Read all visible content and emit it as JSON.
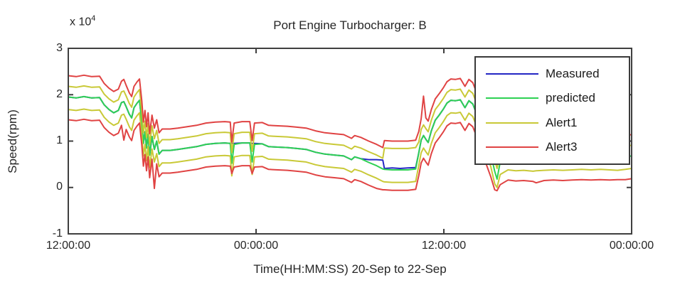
{
  "chart_data": {
    "type": "line",
    "title": "Port Engine Turbocharger: B",
    "xlabel": "Time(HH:MM:SS) 20-Sep to 22-Sep",
    "ylabel": "Speed(rpm)",
    "y_multiplier_base": "x 10",
    "y_multiplier_exp": "4",
    "ylim": [
      -1,
      3
    ],
    "yticks": [
      3,
      2,
      1,
      0,
      -1
    ],
    "ytick_labels": [
      "3",
      "2",
      "1",
      "0",
      "-1"
    ],
    "xlim_hours": [
      0,
      36
    ],
    "xticks": [
      {
        "t": 0,
        "label": "12:00:00"
      },
      {
        "t": 12,
        "label": "00:00:00"
      },
      {
        "t": 24,
        "label": "12:00:00"
      },
      {
        "t": 36,
        "label": "00:00:00"
      }
    ],
    "grid": false,
    "axis_color": "#3f3f3f",
    "legend_position": "top-right",
    "x_hours": [
      0,
      0.5,
      1,
      1.5,
      2,
      2.3,
      2.6,
      2.9,
      3.2,
      3.4,
      3.55,
      3.7,
      3.9,
      4.05,
      4.2,
      4.4,
      4.55,
      4.7,
      4.8,
      4.9,
      5.0,
      5.1,
      5.2,
      5.35,
      5.5,
      5.65,
      5.8,
      6.0,
      6.5,
      7.0,
      7.6,
      8.2,
      8.8,
      9.4,
      10.0,
      10.35,
      10.45,
      10.6,
      11.1,
      11.6,
      11.75,
      11.9,
      12.4,
      12.8,
      13.4,
      14.0,
      14.6,
      15.2,
      15.8,
      16.4,
      17.0,
      17.6,
      18.1,
      18.3,
      18.7,
      19.2,
      19.7,
      20.1,
      20.2,
      20.7,
      21.2,
      21.7,
      22.2,
      22.4,
      22.55,
      22.7,
      22.85,
      23.0,
      23.2,
      23.45,
      23.7,
      23.95,
      24.2,
      24.45,
      24.75,
      25.05,
      25.35,
      25.6,
      25.85,
      26.1,
      26.4,
      26.7,
      27.0,
      27.25,
      27.4,
      27.6,
      28.1,
      28.6,
      29.1,
      29.7,
      29.9,
      30.4,
      31.0,
      31.6,
      32.2,
      32.8,
      33.4,
      34.0,
      34.6,
      35.1,
      35.6,
      36.0
    ],
    "series": [
      {
        "name": "Measured",
        "color": "#2426c4",
        "values": [
          1.95,
          1.93,
          1.96,
          1.93,
          1.94,
          1.78,
          1.68,
          1.61,
          1.66,
          1.83,
          1.85,
          1.74,
          1.58,
          1.5,
          1.72,
          1.82,
          1.88,
          1.4,
          0.95,
          1.2,
          0.85,
          1.15,
          0.7,
          1.1,
          0.82,
          1.0,
          0.72,
          0.8,
          0.8,
          0.82,
          0.85,
          0.88,
          0.93,
          0.95,
          0.96,
          0.95,
          0.95,
          0.95,
          0.96,
          0.96,
          0.95,
          0.95,
          0.94,
          0.88,
          0.87,
          0.86,
          0.84,
          0.82,
          0.76,
          0.72,
          0.7,
          0.68,
          0.6,
          0.66,
          0.62,
          0.6,
          0.6,
          0.59,
          0.41,
          0.42,
          0.41,
          0.42,
          0.43,
          0.75,
          1.02,
          1.12,
          1.04,
          0.97,
          1.22,
          1.45,
          1.56,
          1.68,
          1.82,
          1.88,
          1.87,
          1.89,
          1.72,
          1.87,
          1.8,
          1.58,
          1.3,
          1.0,
          0.72,
          0.6,
          0.6,
          0.62,
          0.65,
          0.63,
          0.64,
          0.62,
          0.63,
          0.64,
          0.65,
          0.64,
          0.65,
          0.66,
          0.65,
          0.66,
          0.65,
          0.64,
          0.66,
          0.68
        ]
      },
      {
        "name": "predicted",
        "color": "#2ed153",
        "values": [
          1.95,
          1.93,
          1.96,
          1.93,
          1.94,
          1.78,
          1.68,
          1.61,
          1.66,
          1.83,
          1.85,
          1.74,
          1.58,
          1.5,
          1.72,
          1.82,
          1.88,
          1.4,
          0.95,
          1.2,
          0.85,
          1.15,
          0.7,
          1.1,
          0.82,
          1.0,
          0.72,
          0.8,
          0.8,
          0.82,
          0.85,
          0.88,
          0.93,
          0.95,
          0.96,
          0.95,
          0.52,
          0.93,
          0.96,
          0.96,
          0.55,
          0.93,
          0.94,
          0.88,
          0.87,
          0.86,
          0.84,
          0.82,
          0.76,
          0.72,
          0.7,
          0.68,
          0.6,
          0.66,
          0.62,
          0.54,
          0.47,
          0.4,
          0.39,
          0.38,
          0.38,
          0.38,
          0.4,
          0.75,
          1.02,
          1.12,
          1.04,
          0.97,
          1.22,
          1.45,
          1.56,
          1.68,
          1.82,
          1.88,
          1.87,
          1.89,
          1.72,
          1.87,
          1.8,
          1.58,
          1.3,
          1.0,
          0.72,
          0.35,
          0.18,
          0.55,
          0.65,
          0.63,
          0.64,
          0.62,
          0.63,
          0.64,
          0.65,
          0.64,
          0.65,
          0.66,
          0.65,
          0.66,
          0.65,
          0.64,
          0.66,
          0.68
        ]
      },
      {
        "name": "Alert1",
        "color": "#c9c937",
        "values_upper": [
          2.18,
          2.16,
          2.19,
          2.16,
          2.17,
          2.01,
          1.91,
          1.84,
          1.89,
          2.06,
          2.08,
          1.97,
          1.81,
          1.73,
          1.95,
          2.05,
          2.11,
          1.63,
          1.18,
          1.43,
          1.08,
          1.38,
          0.93,
          1.33,
          1.05,
          1.23,
          0.95,
          1.03,
          1.03,
          1.05,
          1.08,
          1.11,
          1.16,
          1.18,
          1.19,
          1.18,
          0.75,
          1.16,
          1.19,
          1.19,
          0.78,
          1.16,
          1.17,
          1.11,
          1.1,
          1.09,
          1.07,
          1.05,
          0.99,
          0.95,
          0.93,
          0.91,
          0.83,
          0.89,
          0.85,
          0.77,
          0.7,
          0.63,
          0.85,
          0.84,
          0.84,
          0.84,
          0.86,
          0.98,
          1.25,
          1.35,
          1.27,
          1.2,
          1.45,
          1.68,
          1.79,
          1.91,
          2.05,
          2.11,
          2.1,
          2.12,
          1.95,
          2.1,
          2.03,
          1.81,
          1.53,
          1.23,
          0.95,
          0.58,
          0.41,
          0.78,
          0.88,
          0.86,
          0.87,
          0.85,
          0.86,
          0.87,
          0.88,
          0.87,
          0.88,
          0.89,
          0.88,
          0.89,
          0.88,
          0.87,
          0.89,
          0.91
        ],
        "values_lower": [
          1.68,
          1.66,
          1.69,
          1.66,
          1.67,
          1.51,
          1.41,
          1.34,
          1.39,
          1.56,
          1.58,
          1.47,
          1.31,
          1.23,
          1.45,
          1.55,
          1.61,
          1.13,
          0.68,
          0.93,
          0.58,
          0.88,
          0.43,
          0.83,
          0.55,
          0.73,
          0.45,
          0.53,
          0.53,
          0.55,
          0.58,
          0.61,
          0.66,
          0.68,
          0.69,
          0.68,
          0.25,
          0.66,
          0.69,
          0.69,
          0.28,
          0.66,
          0.67,
          0.61,
          0.6,
          0.59,
          0.57,
          0.55,
          0.49,
          0.45,
          0.43,
          0.41,
          0.33,
          0.39,
          0.35,
          0.27,
          0.2,
          0.13,
          0.12,
          0.11,
          0.11,
          0.11,
          0.13,
          0.48,
          0.75,
          0.85,
          0.77,
          0.7,
          0.95,
          1.18,
          1.29,
          1.41,
          1.55,
          1.61,
          1.6,
          1.62,
          1.45,
          1.6,
          1.53,
          1.31,
          1.03,
          0.73,
          0.45,
          0.08,
          0.0,
          0.28,
          0.38,
          0.36,
          0.37,
          0.35,
          0.36,
          0.37,
          0.38,
          0.37,
          0.38,
          0.39,
          0.38,
          0.39,
          0.38,
          0.37,
          0.39,
          0.41
        ]
      },
      {
        "name": "Alert3",
        "color": "#e04343",
        "values_upper": [
          2.41,
          2.39,
          2.42,
          2.39,
          2.4,
          2.24,
          2.14,
          2.07,
          2.12,
          2.29,
          2.33,
          2.2,
          2.04,
          1.96,
          2.18,
          2.28,
          2.34,
          1.86,
          1.41,
          1.66,
          1.31,
          1.61,
          1.16,
          1.56,
          1.28,
          1.46,
          1.18,
          1.26,
          1.26,
          1.28,
          1.31,
          1.34,
          1.39,
          1.41,
          1.42,
          1.41,
          0.98,
          1.39,
          1.42,
          1.42,
          1.01,
          1.39,
          1.4,
          1.34,
          1.33,
          1.32,
          1.3,
          1.28,
          1.22,
          1.18,
          1.16,
          1.14,
          1.06,
          1.12,
          1.08,
          1.0,
          0.93,
          0.86,
          1.01,
          1.0,
          1.0,
          1.0,
          1.02,
          1.21,
          1.48,
          1.97,
          1.5,
          1.43,
          1.68,
          1.91,
          2.02,
          2.14,
          2.28,
          2.34,
          2.33,
          2.35,
          2.18,
          2.33,
          2.26,
          2.04,
          1.76,
          1.46,
          1.18,
          0.81,
          0.64,
          1.01,
          1.11,
          1.09,
          1.1,
          1.08,
          1.09,
          1.1,
          1.11,
          1.1,
          1.11,
          1.12,
          1.11,
          1.12,
          1.11,
          1.1,
          1.12,
          1.14
        ],
        "values_lower": [
          1.46,
          1.44,
          1.47,
          1.44,
          1.45,
          1.29,
          1.19,
          1.12,
          1.17,
          1.34,
          1.02,
          1.25,
          1.09,
          1.01,
          1.23,
          1.33,
          1.39,
          0.91,
          0.46,
          0.71,
          0.36,
          0.66,
          0.21,
          0.61,
          -0.02,
          0.51,
          0.23,
          0.31,
          0.31,
          0.33,
          0.36,
          0.39,
          0.44,
          0.46,
          0.47,
          0.46,
          0.3,
          0.44,
          0.47,
          0.47,
          0.3,
          0.44,
          0.45,
          0.39,
          0.38,
          0.37,
          0.35,
          0.33,
          0.27,
          0.23,
          0.21,
          0.19,
          0.11,
          0.17,
          0.13,
          0.05,
          -0.02,
          -0.05,
          -0.05,
          -0.06,
          -0.06,
          -0.06,
          -0.04,
          0.26,
          0.53,
          0.63,
          0.55,
          0.48,
          0.73,
          0.96,
          1.07,
          1.19,
          1.33,
          1.39,
          1.38,
          1.4,
          1.23,
          1.38,
          1.31,
          1.09,
          0.81,
          0.51,
          0.23,
          -0.05,
          -0.07,
          0.06,
          0.16,
          0.14,
          0.15,
          0.13,
          0.1,
          0.15,
          0.16,
          0.15,
          0.16,
          0.17,
          0.16,
          0.17,
          0.16,
          0.17,
          0.17,
          0.19
        ]
      }
    ],
    "legend_entries": [
      "Measured",
      "predicted",
      "Alert1",
      "Alert3"
    ]
  }
}
